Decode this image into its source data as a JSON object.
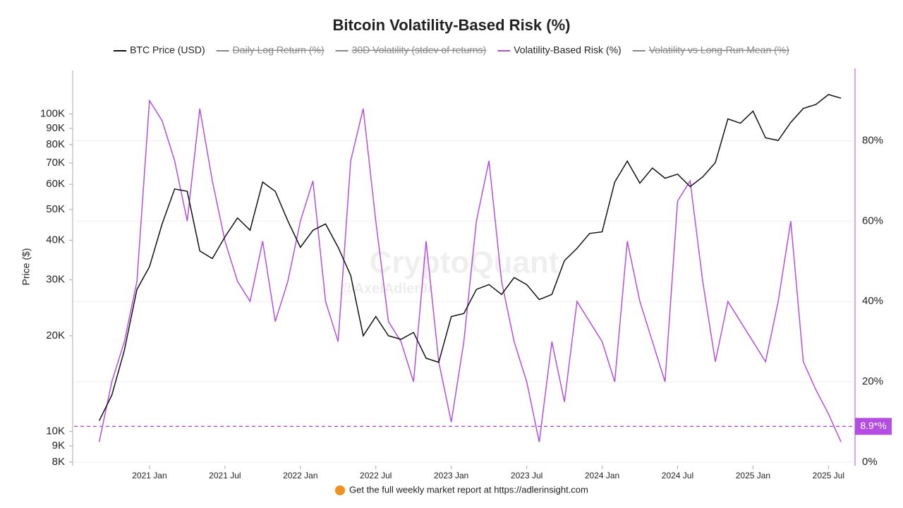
{
  "chart_data": {
    "type": "line",
    "title": "Bitcoin Volatility-Based Risk (%)",
    "y_label": "Price ($)",
    "footer": "Get the full weekly market report at https://adlerinsight.com",
    "watermark": "CryptoQuant",
    "watermark_author": "@AxelAdlerJr",
    "log_y": true,
    "grid": true,
    "x": [
      "2020-09",
      "2020-10",
      "2020-11",
      "2020-12",
      "2021-01",
      "2021-02",
      "2021-03",
      "2021-04",
      "2021-05",
      "2021-06",
      "2021-07",
      "2021-08",
      "2021-09",
      "2021-10",
      "2021-11",
      "2021-12",
      "2022-01",
      "2022-02",
      "2022-03",
      "2022-04",
      "2022-05",
      "2022-06",
      "2022-07",
      "2022-08",
      "2022-09",
      "2022-10",
      "2022-11",
      "2022-12",
      "2023-01",
      "2023-02",
      "2023-03",
      "2023-04",
      "2023-05",
      "2023-06",
      "2023-07",
      "2023-08",
      "2023-09",
      "2023-10",
      "2023-11",
      "2023-12",
      "2024-01",
      "2024-02",
      "2024-03",
      "2024-04",
      "2024-05",
      "2024-06",
      "2024-07",
      "2024-08",
      "2024-09",
      "2024-10",
      "2024-11",
      "2024-12",
      "2025-01",
      "2025-02",
      "2025-03",
      "2025-04",
      "2025-05",
      "2025-06",
      "2025-07",
      "2025-08"
    ],
    "xlim": [
      "2020-07",
      "2025-09"
    ],
    "xticks": [
      {
        "value": "2021-01",
        "label": "2021 Jan"
      },
      {
        "value": "2021-07",
        "label": "2021 Jul"
      },
      {
        "value": "2022-01",
        "label": "2022 Jan"
      },
      {
        "value": "2022-07",
        "label": "2022 Jul"
      },
      {
        "value": "2023-01",
        "label": "2023 Jan"
      },
      {
        "value": "2023-07",
        "label": "2023 Jul"
      },
      {
        "value": "2024-01",
        "label": "2024 Jan"
      },
      {
        "value": "2024-07",
        "label": "2024 Jul"
      },
      {
        "value": "2025-01",
        "label": "2025 Jan"
      },
      {
        "value": "2025-07",
        "label": "2025 Jul"
      }
    ],
    "ylim": [
      8000,
      139000
    ],
    "yticks": [
      {
        "value": 8000,
        "label": "8K"
      },
      {
        "value": 9000,
        "label": "9K"
      },
      {
        "value": 10000,
        "label": "10K"
      },
      {
        "value": 20000,
        "label": "20K"
      },
      {
        "value": 30000,
        "label": "30K"
      },
      {
        "value": 40000,
        "label": "40K"
      },
      {
        "value": 50000,
        "label": "50K"
      },
      {
        "value": 60000,
        "label": "60K"
      },
      {
        "value": 70000,
        "label": "70K"
      },
      {
        "value": 80000,
        "label": "80K"
      },
      {
        "value": 90000,
        "label": "90K"
      },
      {
        "value": 100000,
        "label": "100K"
      }
    ],
    "y2lim": [
      0,
      98
    ],
    "y2ticks": [
      {
        "value": 0,
        "label": "0%"
      },
      {
        "value": 20,
        "label": "20%"
      },
      {
        "value": 40,
        "label": "40%"
      },
      {
        "value": 60,
        "label": "60%"
      },
      {
        "value": 80,
        "label": "80%"
      }
    ],
    "reference_line": {
      "value": 8.9,
      "label": "8.9*%",
      "axis": "y2",
      "color": "#b44ee0"
    },
    "series": [
      {
        "name": "BTC Price (USD)",
        "color": "#111111",
        "values": [
          10800,
          13000,
          18000,
          28000,
          33000,
          45000,
          58000,
          57000,
          37000,
          35000,
          41000,
          47000,
          43000,
          61000,
          57000,
          46000,
          38000,
          43000,
          45000,
          38000,
          31000,
          20000,
          23000,
          20000,
          19500,
          20500,
          17000,
          16500,
          23000,
          23500,
          28000,
          29000,
          27000,
          30500,
          29000,
          26000,
          27000,
          34500,
          37700,
          42000,
          42500,
          61000,
          71000,
          60500,
          67500,
          62700,
          64600,
          59000,
          63300,
          70200,
          96400,
          93400,
          102000,
          84000,
          82500,
          94000,
          104000,
          107000,
          115000,
          112000
        ]
      },
      {
        "name": "Volatility-Based Risk (%)",
        "color": "#b44ee0",
        "axis": "y2",
        "values": [
          5,
          20,
          30,
          45,
          90,
          85,
          75,
          60,
          88,
          70,
          55,
          45,
          40,
          55,
          35,
          45,
          60,
          70,
          40,
          30,
          75,
          88,
          60,
          35,
          30,
          20,
          55,
          25,
          10,
          30,
          60,
          75,
          45,
          30,
          20,
          5,
          30,
          15,
          40,
          35,
          30,
          20,
          55,
          40,
          30,
          20,
          65,
          70,
          45,
          25,
          40,
          35,
          30,
          25,
          40,
          60,
          25,
          18,
          12,
          5
        ]
      }
    ],
    "hidden_series": [
      {
        "name": "Daily Log Return (%)",
        "color": "#888888",
        "index": 1
      },
      {
        "name": "30D Volatility (stdev of returns)",
        "color": "#888888",
        "index": 2
      },
      {
        "name": "Volatility vs Long-Run Mean (%)",
        "color": "#888888",
        "index": 4
      }
    ]
  }
}
